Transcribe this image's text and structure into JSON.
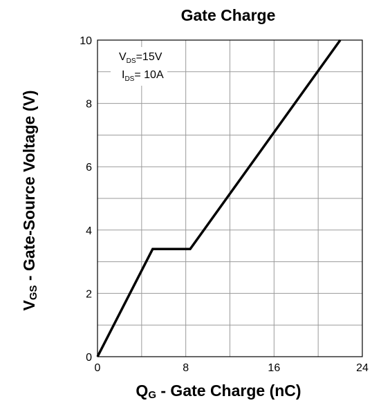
{
  "chart_data": {
    "type": "line",
    "title": "Gate Charge",
    "xlabel": {
      "main": "Q",
      "sub": "G",
      "rest": " - Gate Charge (nC)"
    },
    "ylabel": {
      "main": "V",
      "sub": "GS",
      "rest": " - Gate-Source Voltage (V)"
    },
    "xlim": [
      0,
      24
    ],
    "ylim": [
      0,
      10
    ],
    "x_ticks": [
      0,
      8,
      16,
      24
    ],
    "y_ticks": [
      0,
      2,
      4,
      6,
      8,
      10
    ],
    "x_grid": [
      0,
      4,
      8,
      12,
      16,
      20,
      24
    ],
    "y_grid": [
      0,
      1,
      2,
      3,
      4,
      5,
      6,
      7,
      8,
      9,
      10
    ],
    "grid": true,
    "annotations": [
      {
        "main": "V",
        "sub": "DS",
        "rest": "=15V"
      },
      {
        "main": "I",
        "sub": "DS",
        "rest": "= 10A"
      }
    ],
    "series": [
      {
        "x": [
          0,
          5,
          8.4,
          22
        ],
        "y": [
          0,
          3.4,
          3.4,
          10
        ]
      }
    ],
    "line_color": "#000000"
  }
}
